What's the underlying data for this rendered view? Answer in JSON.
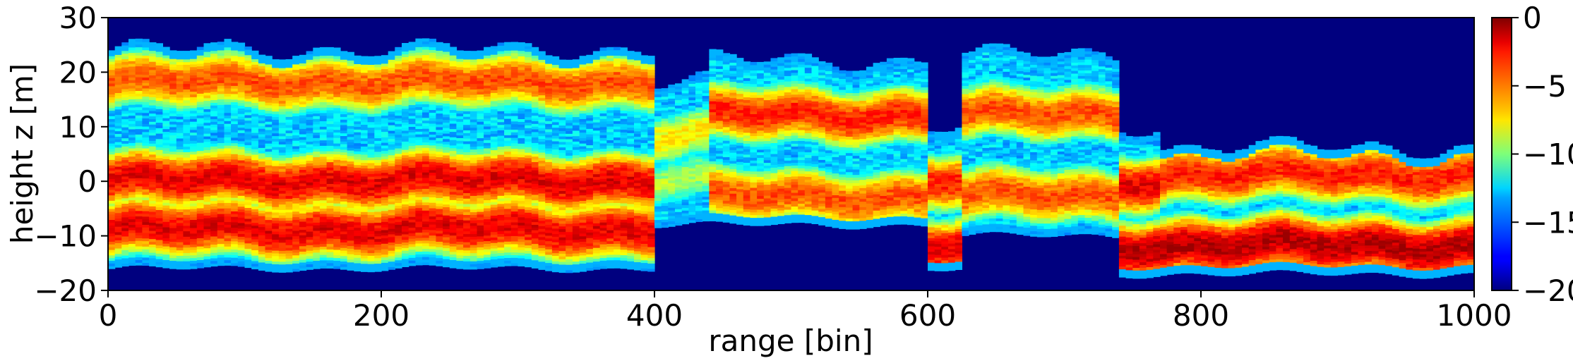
{
  "chart_data": {
    "type": "heatmap",
    "title": "",
    "xlabel": "range [bin]",
    "ylabel": "height z [m]",
    "xlim": [
      0,
      1000
    ],
    "ylim": [
      -20,
      30
    ],
    "xticks": [
      0,
      200,
      400,
      600,
      800,
      1000
    ],
    "yticks": [
      -20,
      -10,
      0,
      10,
      20,
      30
    ],
    "colorbar": {
      "colormap": "jet",
      "range": [
        -20,
        0
      ],
      "ticks": [
        0,
        -5,
        -10,
        -15,
        -20
      ],
      "tick_labels": [
        "0",
        "−5",
        "−10",
        "−15",
        "−20"
      ]
    },
    "background_value": -20,
    "segments": [
      {
        "x_start": 0,
        "x_end": 400,
        "z_bottom": -16,
        "z_top": 24,
        "peak_value": -1,
        "layers": [
          {
            "z": 0,
            "value": -2
          },
          {
            "z": -9,
            "value": -2
          },
          {
            "z": 18,
            "value": -4
          }
        ]
      },
      {
        "x_start": 400,
        "x_end": 440,
        "z_bottom": -8,
        "z_top": 18,
        "peak_value": -7,
        "layers": [
          {
            "z": 8,
            "value": -7
          },
          {
            "z": 0,
            "value": -9
          }
        ]
      },
      {
        "x_start": 440,
        "x_end": 600,
        "z_bottom": -8,
        "z_top": 22,
        "peak_value": -3,
        "layers": [
          {
            "z": 12,
            "value": -3
          },
          {
            "z": -3,
            "value": -4
          }
        ]
      },
      {
        "x_start": 600,
        "x_end": 625,
        "z_bottom": -16,
        "z_top": 10,
        "peak_value": -2,
        "layers": [
          {
            "z": -12,
            "value": -2
          },
          {
            "z": 0,
            "value": -3
          }
        ]
      },
      {
        "x_start": 625,
        "x_end": 740,
        "z_bottom": -10,
        "z_top": 23,
        "peak_value": -3,
        "layers": [
          {
            "z": 12,
            "value": -4
          },
          {
            "z": -3,
            "value": -4
          }
        ]
      },
      {
        "x_start": 740,
        "x_end": 770,
        "z_bottom": -17,
        "z_top": 10,
        "peak_value": -1,
        "layers": [
          {
            "z": -12,
            "value": -1
          },
          {
            "z": 0,
            "value": -2
          }
        ]
      },
      {
        "x_start": 770,
        "x_end": 1000,
        "z_bottom": -17,
        "z_top": 6,
        "peak_value": -1,
        "layers": [
          {
            "z": 1,
            "value": -3
          },
          {
            "z": -12,
            "value": -1
          }
        ]
      }
    ]
  }
}
